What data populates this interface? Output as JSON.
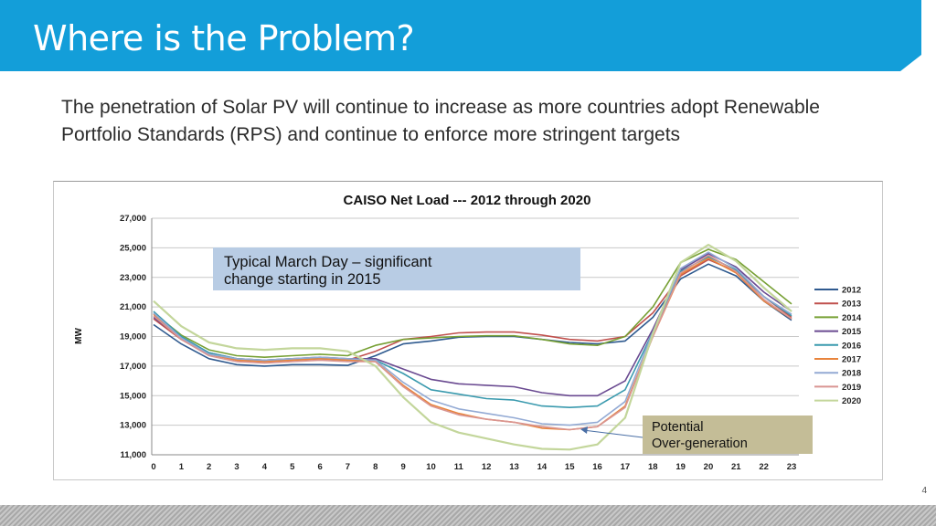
{
  "slide": {
    "title": "Where is the Problem?",
    "body": "The penetration of Solar PV will continue to increase as more countries adopt Renewable Portfolio Standards (RPS) and continue to enforce more stringent targets",
    "page_number": "4",
    "accent_color": "#139ed9"
  },
  "chart_data": {
    "type": "line",
    "title": "CAISO Net Load --- 2012 through 2020",
    "ylabel": "MW",
    "xlabel": "",
    "x": [
      0,
      1,
      2,
      3,
      4,
      5,
      6,
      7,
      8,
      9,
      10,
      11,
      12,
      13,
      14,
      15,
      16,
      17,
      18,
      19,
      20,
      21,
      22,
      23
    ],
    "x_tick_labels": [
      "0",
      "1",
      "2",
      "3",
      "4",
      "5",
      "6",
      "7",
      "8",
      "9",
      "10",
      "11",
      "12",
      "13",
      "14",
      "15",
      "16",
      "17",
      "18",
      "19",
      "20",
      "21",
      "22",
      "23"
    ],
    "ylim": [
      11000,
      27000
    ],
    "y_ticks": [
      11000,
      13000,
      15000,
      17000,
      19000,
      21000,
      23000,
      25000,
      27000
    ],
    "y_tick_labels": [
      "11,000",
      "13,000",
      "15,000",
      "17,000",
      "19,000",
      "21,000",
      "23,000",
      "25,000",
      "27,000"
    ],
    "grid": true,
    "legend_position": "right",
    "series": [
      {
        "name": "2012",
        "color": "#2f5a8f",
        "values": [
          19800,
          18500,
          17500,
          17100,
          17000,
          17100,
          17100,
          17050,
          17700,
          18500,
          18700,
          18950,
          19000,
          19000,
          18800,
          18600,
          18500,
          18700,
          20300,
          22900,
          23900,
          23100,
          21400,
          20100
        ]
      },
      {
        "name": "2013",
        "color": "#c0504d",
        "values": [
          20200,
          18800,
          17800,
          17400,
          17300,
          17400,
          17500,
          17400,
          18000,
          18800,
          19000,
          19250,
          19300,
          19300,
          19100,
          18800,
          18700,
          19000,
          20600,
          23100,
          24200,
          23400,
          21700,
          20300
        ]
      },
      {
        "name": "2014",
        "color": "#77a034",
        "values": [
          20600,
          19100,
          18100,
          17700,
          17600,
          17700,
          17800,
          17700,
          18400,
          18800,
          18900,
          19000,
          19050,
          19050,
          18800,
          18500,
          18400,
          19000,
          21000,
          24000,
          24900,
          24200,
          22700,
          21200
        ]
      },
      {
        "name": "2015",
        "color": "#6a4a91",
        "values": [
          20300,
          18900,
          17900,
          17500,
          17400,
          17500,
          17600,
          17500,
          17500,
          16800,
          16100,
          15800,
          15700,
          15600,
          15200,
          15000,
          15000,
          16000,
          19500,
          23500,
          24600,
          23700,
          22000,
          20700
        ]
      },
      {
        "name": "2016",
        "color": "#3a9aae",
        "values": [
          20700,
          19000,
          17900,
          17500,
          17400,
          17500,
          17500,
          17400,
          17400,
          16500,
          15400,
          15100,
          14800,
          14700,
          14300,
          14200,
          14300,
          15400,
          19300,
          23400,
          24400,
          23500,
          21700,
          20400
        ]
      },
      {
        "name": "2017",
        "color": "#e8843c",
        "values": [
          20500,
          18800,
          17800,
          17400,
          17300,
          17400,
          17500,
          17400,
          17300,
          15700,
          14400,
          13800,
          13400,
          13200,
          12800,
          12700,
          12900,
          14300,
          19000,
          23200,
          24300,
          23300,
          21400,
          20200
        ]
      },
      {
        "name": "2018",
        "color": "#93aad4",
        "values": [
          20600,
          18900,
          17800,
          17500,
          17400,
          17500,
          17600,
          17500,
          17400,
          15900,
          14700,
          14100,
          13800,
          13500,
          13100,
          13000,
          13200,
          14600,
          19300,
          23600,
          24700,
          23600,
          21700,
          20500
        ]
      },
      {
        "name": "2019",
        "color": "#d99592",
        "values": [
          20400,
          18800,
          17700,
          17300,
          17200,
          17300,
          17400,
          17300,
          17300,
          15600,
          14300,
          13700,
          13400,
          13200,
          12900,
          12700,
          12900,
          14200,
          19000,
          23300,
          24500,
          23400,
          21500,
          20200
        ]
      },
      {
        "name": "2020",
        "color": "#c3d69b",
        "values": [
          21400,
          19700,
          18600,
          18200,
          18100,
          18200,
          18200,
          18000,
          17000,
          14900,
          13200,
          12500,
          12100,
          11700,
          11400,
          11350,
          11700,
          13500,
          19200,
          24000,
          25200,
          24100,
          22300,
          20700
        ]
      }
    ],
    "annotations": [
      {
        "line1": "Typical March Day – significant",
        "line2": "change starting in 2015",
        "fill": "#b8cce4"
      },
      {
        "line1": "Potential",
        "line2": "Over-generation",
        "fill": "#c4bd97"
      }
    ]
  }
}
